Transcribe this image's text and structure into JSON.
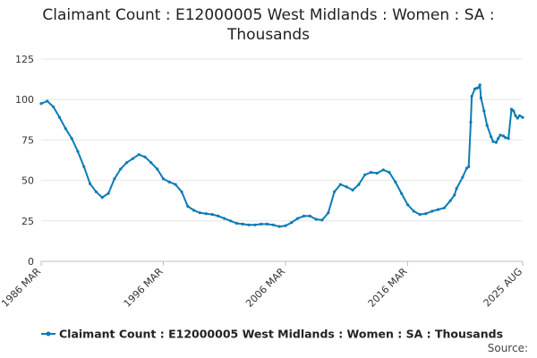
{
  "chart_data": {
    "type": "line",
    "title": "Claimant Count : E12000005 West Midlands : Women : SA : Thousands",
    "title_lines": [
      "Claimant Count : E12000005 West Midlands : Women : SA :",
      "Thousands"
    ],
    "y_ticks": [
      "0",
      "25",
      "50",
      "75",
      "100",
      "125"
    ],
    "ylim": [
      0,
      125
    ],
    "x_tick_labels": [
      "1986 MAR",
      "1996 MAR",
      "2006 MAR",
      "2016 MAR",
      "2025 AUG"
    ],
    "x_tick_values": [
      "1986-03",
      "1996-03",
      "2006-03",
      "2016-03",
      "2025-08"
    ],
    "xlim": [
      "1986-03",
      "2025-08"
    ],
    "grid": "horizontal",
    "legend_position": "bottom",
    "series": [
      {
        "name": "Claimant Count : E12000005 West Midlands : Women : SA : Thousands",
        "color": "#0d7bb5",
        "points": [
          [
            "1986-03",
            97.5
          ],
          [
            "1986-09",
            99
          ],
          [
            "1987-03",
            95.5
          ],
          [
            "1987-09",
            89
          ],
          [
            "1988-03",
            82
          ],
          [
            "1988-09",
            76
          ],
          [
            "1989-03",
            68
          ],
          [
            "1989-09",
            58.5
          ],
          [
            "1990-03",
            48
          ],
          [
            "1990-09",
            43
          ],
          [
            "1991-03",
            39.5
          ],
          [
            "1991-09",
            42
          ],
          [
            "1992-03",
            51
          ],
          [
            "1992-09",
            57
          ],
          [
            "1993-03",
            61
          ],
          [
            "1993-09",
            63.5
          ],
          [
            "1994-03",
            66
          ],
          [
            "1994-09",
            64.5
          ],
          [
            "1995-03",
            61
          ],
          [
            "1995-09",
            57
          ],
          [
            "1996-03",
            51
          ],
          [
            "1996-09",
            49
          ],
          [
            "1997-03",
            47.5
          ],
          [
            "1997-09",
            43
          ],
          [
            "1998-03",
            34
          ],
          [
            "1998-09",
            31.5
          ],
          [
            "1999-03",
            30
          ],
          [
            "1999-09",
            29.5
          ],
          [
            "2000-03",
            29
          ],
          [
            "2000-09",
            28
          ],
          [
            "2001-03",
            26.5
          ],
          [
            "2001-09",
            25
          ],
          [
            "2002-03",
            23.5
          ],
          [
            "2002-09",
            23
          ],
          [
            "2003-03",
            22.5
          ],
          [
            "2003-09",
            22.5
          ],
          [
            "2004-03",
            23
          ],
          [
            "2004-09",
            23
          ],
          [
            "2005-03",
            22.5
          ],
          [
            "2005-09",
            21.5
          ],
          [
            "2006-03",
            22
          ],
          [
            "2006-09",
            24
          ],
          [
            "2007-03",
            26.5
          ],
          [
            "2007-09",
            28
          ],
          [
            "2008-03",
            28
          ],
          [
            "2008-09",
            26
          ],
          [
            "2009-03",
            25.5
          ],
          [
            "2009-09",
            30
          ],
          [
            "2010-03",
            43
          ],
          [
            "2010-09",
            47.5
          ],
          [
            "2011-03",
            46
          ],
          [
            "2011-09",
            44
          ],
          [
            "2012-03",
            47.5
          ],
          [
            "2012-09",
            53.5
          ],
          [
            "2013-03",
            55
          ],
          [
            "2013-09",
            54.5
          ],
          [
            "2014-03",
            56.5
          ],
          [
            "2014-09",
            55
          ],
          [
            "2015-03",
            49
          ],
          [
            "2015-09",
            42
          ],
          [
            "2016-03",
            35
          ],
          [
            "2016-09",
            31
          ],
          [
            "2017-03",
            29
          ],
          [
            "2017-09",
            29.5
          ],
          [
            "2018-03",
            31
          ],
          [
            "2018-09",
            32
          ],
          [
            "2019-03",
            33
          ],
          [
            "2019-09",
            37.5
          ],
          [
            "2020-01",
            41
          ],
          [
            "2020-03",
            45
          ],
          [
            "2020-09",
            52
          ],
          [
            "2021-01",
            57.5
          ],
          [
            "2021-03",
            58.5
          ],
          [
            "2021-05",
            86
          ],
          [
            "2021-06",
            102
          ],
          [
            "2021-09",
            106.5
          ],
          [
            "2021-11",
            107
          ],
          [
            "2022-01",
            107.5
          ],
          [
            "2022-02",
            109
          ],
          [
            "2022-03",
            101
          ],
          [
            "2022-06",
            93
          ],
          [
            "2022-09",
            84
          ],
          [
            "2023-01",
            77
          ],
          [
            "2023-03",
            74
          ],
          [
            "2023-06",
            73.5
          ],
          [
            "2023-08",
            76
          ],
          [
            "2023-10",
            78
          ],
          [
            "2024-01",
            77.5
          ],
          [
            "2024-03",
            76.5
          ],
          [
            "2024-06",
            76
          ],
          [
            "2024-09",
            94
          ],
          [
            "2024-11",
            93
          ],
          [
            "2025-01",
            90
          ],
          [
            "2025-03",
            88.5
          ],
          [
            "2025-05",
            90
          ],
          [
            "2025-08",
            89
          ]
        ]
      }
    ],
    "source_label": "Source:"
  }
}
